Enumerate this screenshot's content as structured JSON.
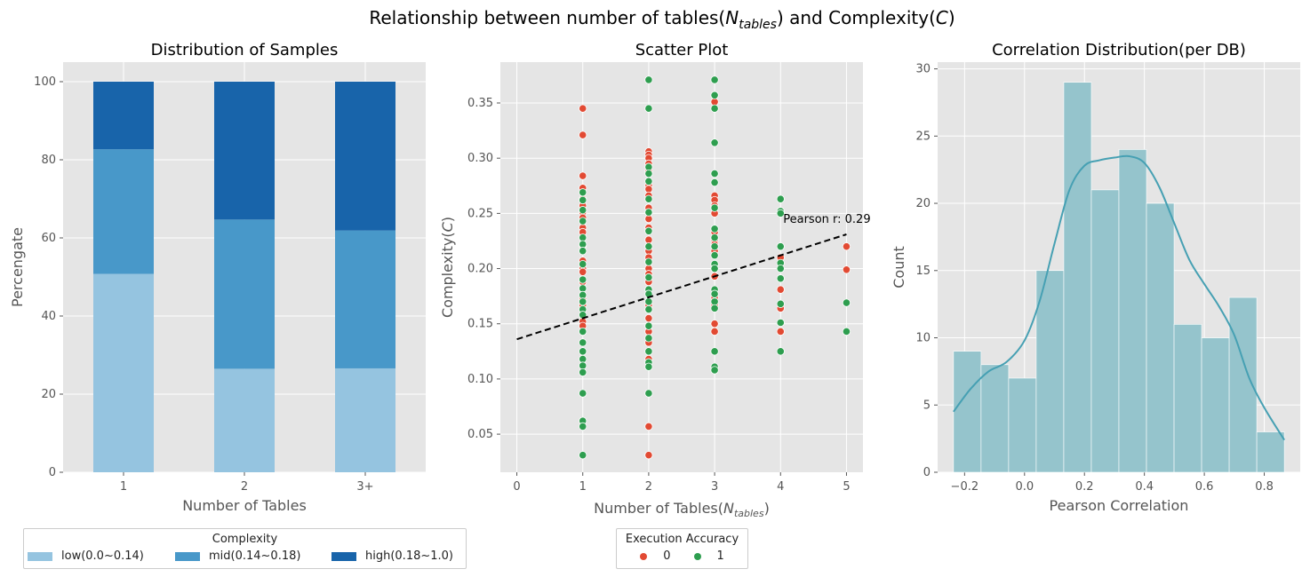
{
  "suptitle_prefix": "Relationship between number of tables(",
  "suptitle_symbol": "N",
  "suptitle_subscript": "tables",
  "suptitle_mid": ") and Complexity(",
  "suptitle_var": "C",
  "suptitle_suffix": ")",
  "chart_data": [
    {
      "type": "bar",
      "stacked": true,
      "title": "Distribution of Samples",
      "xlabel": "Number of Tables",
      "ylabel": "Percengate",
      "categories": [
        "1",
        "2",
        "3+"
      ],
      "ylim": [
        0,
        105
      ],
      "yticks": [
        0,
        20,
        40,
        60,
        80,
        100
      ],
      "grid": true,
      "series": [
        {
          "name": "low(0.0~0.14)",
          "color": "#95c4e0",
          "values": [
            50.8,
            26.5,
            26.6
          ]
        },
        {
          "name": "mid(0.14~0.18)",
          "color": "#4898c9",
          "values": [
            31.9,
            38.2,
            35.3
          ]
        },
        {
          "name": "high(0.18~1.0)",
          "color": "#1864aa",
          "values": [
            17.3,
            35.3,
            38.1
          ]
        }
      ],
      "legend": {
        "title": "Complexity",
        "placement": "bottom"
      }
    },
    {
      "type": "scatter",
      "title": "Scatter Plot",
      "xlabel_prefix": "Number of Tables(",
      "xlabel_symbol": "N",
      "xlabel_subscript": "tables",
      "xlabel_suffix": ")",
      "ylabel_prefix": "Complexity(",
      "ylabel_var": "C",
      "ylabel_suffix": ")",
      "xlim": [
        -0.25,
        5.25
      ],
      "ylim": [
        0.0155,
        0.387
      ],
      "xticks": [
        0,
        1,
        2,
        3,
        4,
        5
      ],
      "yticks": [
        0.05,
        0.1,
        0.15,
        0.2,
        0.25,
        0.3,
        0.35
      ],
      "ytick_labels": [
        "0.05",
        "0.10",
        "0.15",
        "0.20",
        "0.25",
        "0.30",
        "0.35"
      ],
      "grid": true,
      "annotation": "Pearson r: 0.29",
      "trend_line": {
        "x": [
          0,
          5
        ],
        "y": [
          0.136,
          0.231
        ],
        "color": "#000000",
        "style": "dashed"
      },
      "series": [
        {
          "name": "0",
          "color": "#e24a33",
          "points": [
            [
              1,
              0.345
            ],
            [
              1,
              0.321
            ],
            [
              1,
              0.284
            ],
            [
              1,
              0.273
            ],
            [
              1,
              0.263
            ],
            [
              1,
              0.257
            ],
            [
              1,
              0.251
            ],
            [
              1,
              0.246
            ],
            [
              1,
              0.237
            ],
            [
              1,
              0.233
            ],
            [
              1,
              0.221
            ],
            [
              1,
              0.207
            ],
            [
              1,
              0.2
            ],
            [
              1,
              0.197
            ],
            [
              1,
              0.188
            ],
            [
              1,
              0.172
            ],
            [
              1,
              0.167
            ],
            [
              1,
              0.152
            ],
            [
              1,
              0.148
            ],
            [
              2,
              0.306
            ],
            [
              2,
              0.303
            ],
            [
              2,
              0.3
            ],
            [
              2,
              0.295
            ],
            [
              2,
              0.288
            ],
            [
              2,
              0.275
            ],
            [
              2,
              0.272
            ],
            [
              2,
              0.266
            ],
            [
              2,
              0.255
            ],
            [
              2,
              0.245
            ],
            [
              2,
              0.237
            ],
            [
              2,
              0.226
            ],
            [
              2,
              0.216
            ],
            [
              2,
              0.21
            ],
            [
              2,
              0.2
            ],
            [
              2,
              0.195
            ],
            [
              2,
              0.188
            ],
            [
              2,
              0.167
            ],
            [
              2,
              0.155
            ],
            [
              2,
              0.143
            ],
            [
              2,
              0.133
            ],
            [
              2,
              0.118
            ],
            [
              2,
              0.057
            ],
            [
              2,
              0.031
            ],
            [
              3,
              0.357
            ],
            [
              3,
              0.351
            ],
            [
              3,
              0.266
            ],
            [
              3,
              0.262
            ],
            [
              3,
              0.257
            ],
            [
              3,
              0.25
            ],
            [
              3,
              0.233
            ],
            [
              3,
              0.226
            ],
            [
              3,
              0.222
            ],
            [
              3,
              0.216
            ],
            [
              3,
              0.2
            ],
            [
              3,
              0.193
            ],
            [
              3,
              0.174
            ],
            [
              3,
              0.167
            ],
            [
              3,
              0.15
            ],
            [
              3,
              0.143
            ],
            [
              4,
              0.21
            ],
            [
              4,
              0.181
            ],
            [
              4,
              0.164
            ],
            [
              4,
              0.143
            ],
            [
              5,
              0.22
            ],
            [
              5,
              0.199
            ]
          ]
        },
        {
          "name": "1",
          "color": "#2e9e4f",
          "points": [
            [
              1,
              0.269
            ],
            [
              1,
              0.262
            ],
            [
              1,
              0.253
            ],
            [
              1,
              0.243
            ],
            [
              1,
              0.228
            ],
            [
              1,
              0.222
            ],
            [
              1,
              0.216
            ],
            [
              1,
              0.204
            ],
            [
              1,
              0.19
            ],
            [
              1,
              0.182
            ],
            [
              1,
              0.176
            ],
            [
              1,
              0.17
            ],
            [
              1,
              0.163
            ],
            [
              1,
              0.158
            ],
            [
              1,
              0.143
            ],
            [
              1,
              0.133
            ],
            [
              1,
              0.125
            ],
            [
              1,
              0.118
            ],
            [
              1,
              0.112
            ],
            [
              1,
              0.106
            ],
            [
              1,
              0.087
            ],
            [
              1,
              0.062
            ],
            [
              1,
              0.057
            ],
            [
              1,
              0.031
            ],
            [
              2,
              0.371
            ],
            [
              2,
              0.345
            ],
            [
              2,
              0.292
            ],
            [
              2,
              0.286
            ],
            [
              2,
              0.279
            ],
            [
              2,
              0.263
            ],
            [
              2,
              0.251
            ],
            [
              2,
              0.234
            ],
            [
              2,
              0.22
            ],
            [
              2,
              0.206
            ],
            [
              2,
              0.192
            ],
            [
              2,
              0.181
            ],
            [
              2,
              0.177
            ],
            [
              2,
              0.17
            ],
            [
              2,
              0.163
            ],
            [
              2,
              0.148
            ],
            [
              2,
              0.137
            ],
            [
              2,
              0.125
            ],
            [
              2,
              0.115
            ],
            [
              2,
              0.111
            ],
            [
              2,
              0.087
            ],
            [
              3,
              0.371
            ],
            [
              3,
              0.357
            ],
            [
              3,
              0.345
            ],
            [
              3,
              0.314
            ],
            [
              3,
              0.286
            ],
            [
              3,
              0.278
            ],
            [
              3,
              0.255
            ],
            [
              3,
              0.236
            ],
            [
              3,
              0.228
            ],
            [
              3,
              0.22
            ],
            [
              3,
              0.212
            ],
            [
              3,
              0.204
            ],
            [
              3,
              0.2
            ],
            [
              3,
              0.181
            ],
            [
              3,
              0.177
            ],
            [
              3,
              0.17
            ],
            [
              3,
              0.164
            ],
            [
              3,
              0.125
            ],
            [
              3,
              0.111
            ],
            [
              3,
              0.108
            ],
            [
              4,
              0.263
            ],
            [
              4,
              0.252
            ],
            [
              4,
              0.25
            ],
            [
              4,
              0.22
            ],
            [
              4,
              0.205
            ],
            [
              4,
              0.2
            ],
            [
              4,
              0.191
            ],
            [
              4,
              0.168
            ],
            [
              4,
              0.151
            ],
            [
              4,
              0.125
            ],
            [
              5,
              0.169
            ],
            [
              5,
              0.143
            ]
          ]
        }
      ],
      "legend": {
        "title": "Execution Accuracy",
        "placement": "bottom"
      }
    },
    {
      "type": "histogram",
      "title": "Correlation Distribution(per DB)",
      "xlabel": "Pearson Correlation",
      "ylabel": "Count",
      "xlim": [
        -0.29,
        0.92
      ],
      "ylim": [
        0,
        30.5
      ],
      "xticks": [
        -0.2,
        0.0,
        0.2,
        0.4,
        0.6,
        0.8
      ],
      "xtick_labels": [
        "−0.2",
        "0.0",
        "0.2",
        "0.4",
        "0.6",
        "0.8"
      ],
      "yticks": [
        0,
        5,
        10,
        15,
        20,
        25,
        30
      ],
      "grid": true,
      "bar_color": "#95c4cc",
      "kde_color": "#46a0b3",
      "bins": [
        {
          "x0": -0.237,
          "x1": -0.145,
          "count": 9
        },
        {
          "x0": -0.145,
          "x1": -0.053,
          "count": 8
        },
        {
          "x0": -0.053,
          "x1": 0.039,
          "count": 7
        },
        {
          "x0": 0.039,
          "x1": 0.131,
          "count": 15
        },
        {
          "x0": 0.131,
          "x1": 0.223,
          "count": 29
        },
        {
          "x0": 0.223,
          "x1": 0.315,
          "count": 21
        },
        {
          "x0": 0.315,
          "x1": 0.407,
          "count": 24
        },
        {
          "x0": 0.407,
          "x1": 0.499,
          "count": 20
        },
        {
          "x0": 0.499,
          "x1": 0.591,
          "count": 11
        },
        {
          "x0": 0.591,
          "x1": 0.683,
          "count": 10
        },
        {
          "x0": 0.683,
          "x1": 0.775,
          "count": 13
        },
        {
          "x0": 0.775,
          "x1": 0.867,
          "count": 3
        }
      ],
      "kde": [
        [
          -0.237,
          4.5
        ],
        [
          -0.18,
          6.2
        ],
        [
          -0.12,
          7.5
        ],
        [
          -0.06,
          8.2
        ],
        [
          0.0,
          9.8
        ],
        [
          0.05,
          12.7
        ],
        [
          0.1,
          17.0
        ],
        [
          0.15,
          21.0
        ],
        [
          0.2,
          22.8
        ],
        [
          0.25,
          23.2
        ],
        [
          0.3,
          23.4
        ],
        [
          0.35,
          23.5
        ],
        [
          0.4,
          23.0
        ],
        [
          0.45,
          21.2
        ],
        [
          0.5,
          18.5
        ],
        [
          0.55,
          15.8
        ],
        [
          0.6,
          14.0
        ],
        [
          0.65,
          12.3
        ],
        [
          0.7,
          10.2
        ],
        [
          0.75,
          7.0
        ],
        [
          0.8,
          4.8
        ],
        [
          0.867,
          2.4
        ]
      ]
    }
  ]
}
